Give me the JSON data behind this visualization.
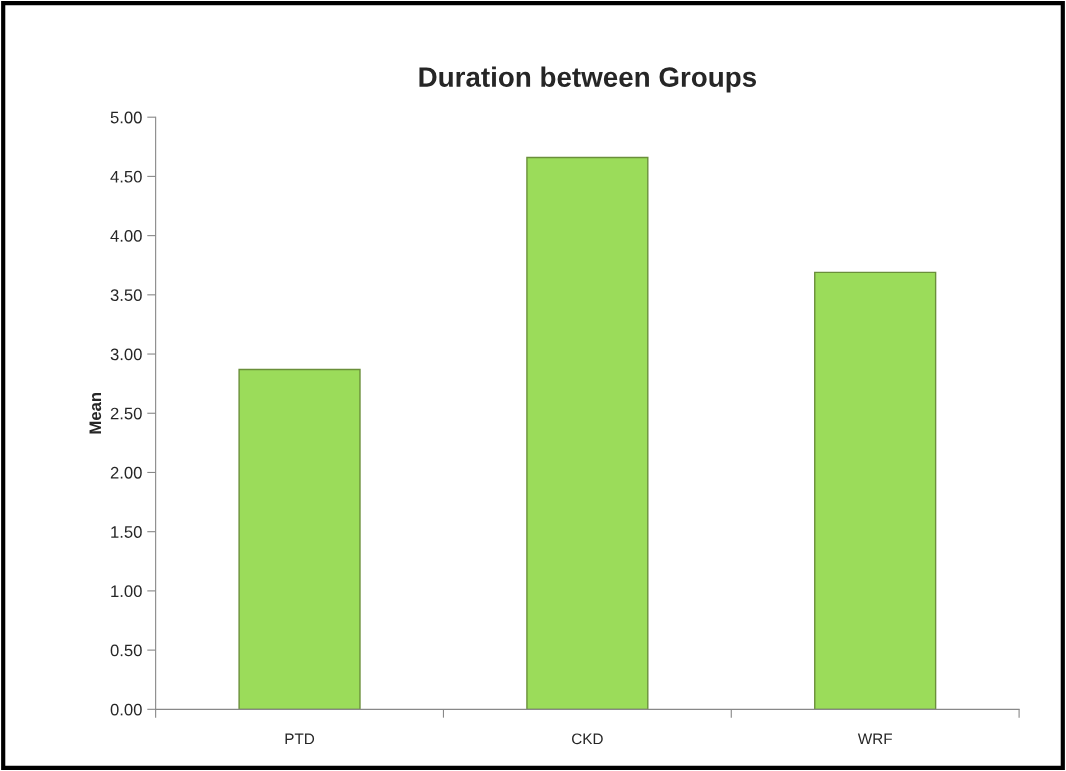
{
  "chart_data": {
    "type": "bar",
    "title": "Duration between Groups",
    "ylabel": "Mean",
    "categories": [
      "PTD",
      "CKD",
      "WRF"
    ],
    "values": [
      2.87,
      4.66,
      3.69
    ],
    "color": "#9bdc5a",
    "ylim": [
      0,
      5
    ],
    "yticks": [
      {
        "value": 0,
        "label": "0.00"
      },
      {
        "value": 0.5,
        "label": "0.50"
      },
      {
        "value": 1,
        "label": "1.00"
      },
      {
        "value": 1.5,
        "label": "1.50"
      },
      {
        "value": 2,
        "label": "2.00"
      },
      {
        "value": 2.5,
        "label": "2.50"
      },
      {
        "value": 3,
        "label": "3.00"
      },
      {
        "value": 3.5,
        "label": "3.50"
      },
      {
        "value": 4,
        "label": "4.00"
      },
      {
        "value": 4.5,
        "label": "4.50"
      },
      {
        "value": 5,
        "label": "5.00"
      }
    ],
    "grid": false,
    "legend": false
  }
}
